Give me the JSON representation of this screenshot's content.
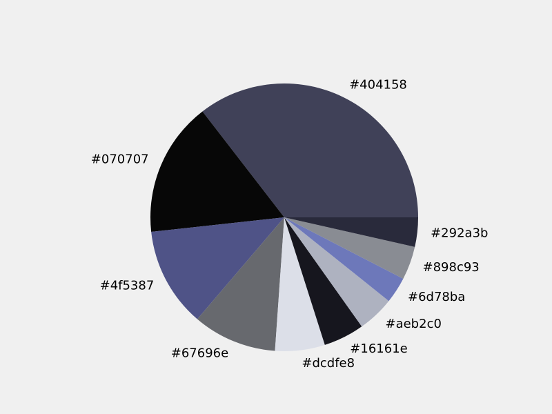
{
  "chart_data": {
    "type": "pie",
    "title": "",
    "start_angle_deg": 0,
    "direction": "counterclockwise",
    "slices": [
      {
        "label": "#404158",
        "value": 36.0,
        "color": "#404158"
      },
      {
        "label": "#070707",
        "value": 16.5,
        "color": "#070707"
      },
      {
        "label": "#4f5387",
        "value": 12.2,
        "color": "#4f5387"
      },
      {
        "label": "#67696e",
        "value": 10.3,
        "color": "#67696e"
      },
      {
        "label": "#dcdfe8",
        "value": 6.1,
        "color": "#dcdfe8"
      },
      {
        "label": "#16161e",
        "value": 5.0,
        "color": "#16161e"
      },
      {
        "label": "#aeb2c0",
        "value": 4.5,
        "color": "#aeb2c0"
      },
      {
        "label": "#6d78ba",
        "value": 3.2,
        "color": "#6d78ba"
      },
      {
        "label": "#898c93",
        "value": 4.1,
        "color": "#898c93"
      },
      {
        "label": "#292a3b",
        "value": 3.6,
        "color": "#292a3b"
      }
    ]
  }
}
